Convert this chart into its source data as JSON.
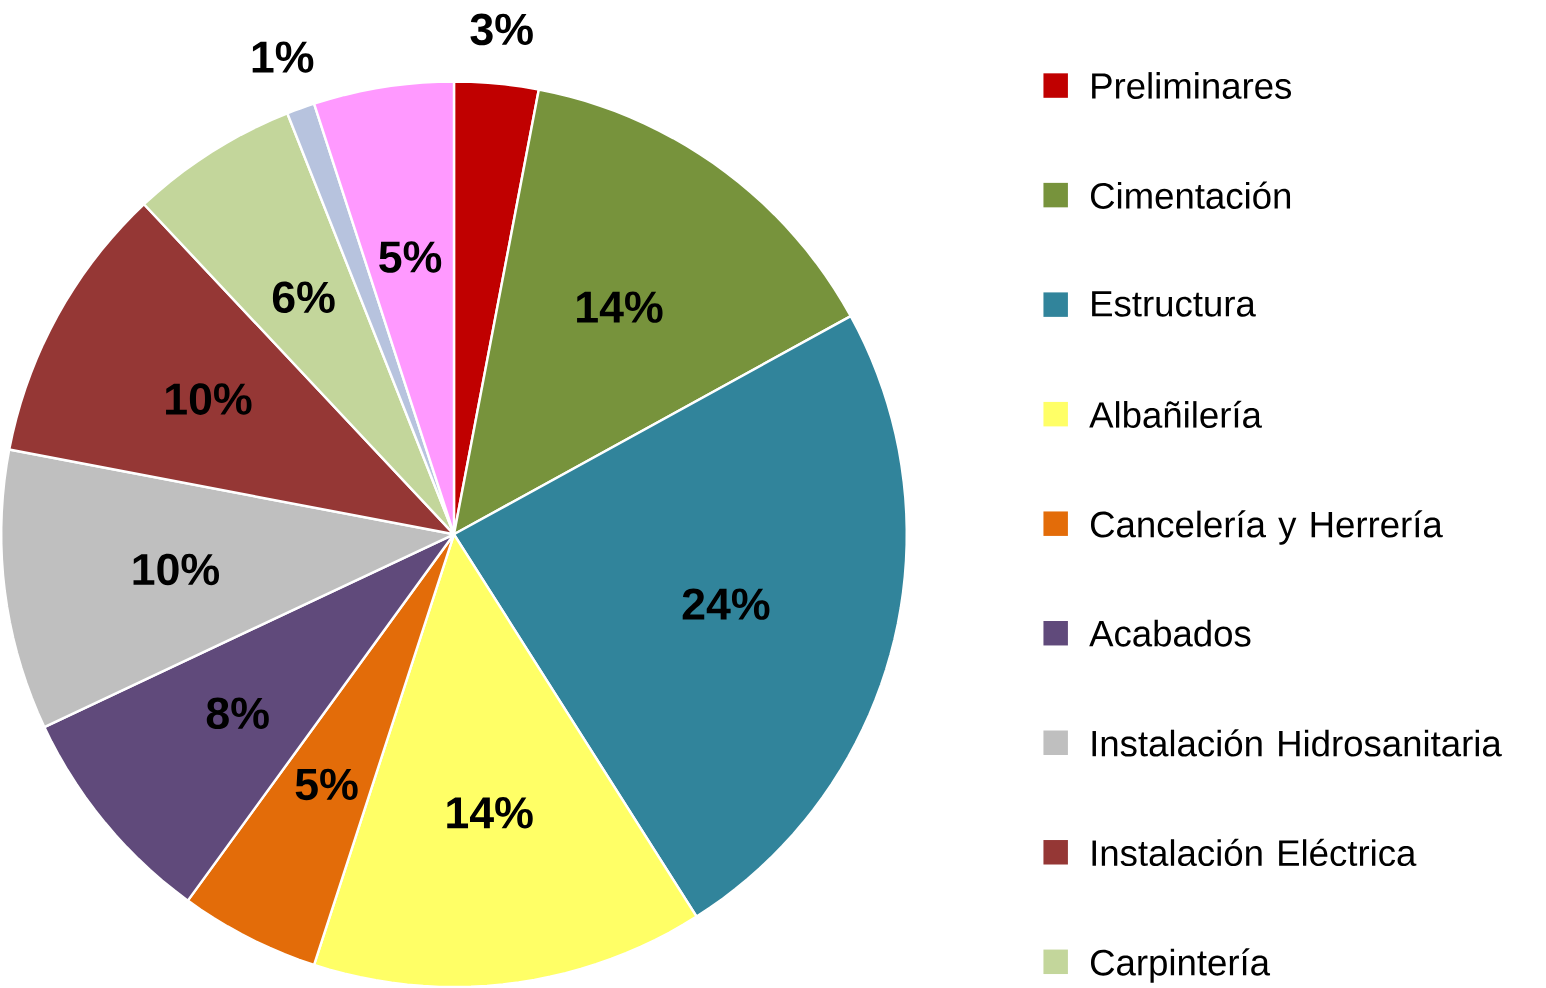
{
  "chart_data": {
    "type": "pie",
    "categories": [
      "Preliminares",
      "Cimentación",
      "Estructura",
      "Albañilería",
      "Cancelería y Herrería",
      "Acabados",
      "Instalación Hidrosanitaria",
      "Instalación Eléctrica",
      "Carpintería",
      null,
      null
    ],
    "values": [
      3,
      14,
      24,
      14,
      5,
      8,
      10,
      10,
      6,
      1,
      5
    ],
    "value_labels": [
      "3%",
      "14%",
      "24%",
      "14%",
      "5%",
      "8%",
      "10%",
      "10%",
      "6%",
      "1%",
      "5%"
    ],
    "colors": [
      "#c00000",
      "#77933c",
      "#31849b",
      "#ffff66",
      "#e36c09",
      "#604a7b",
      "#bfbfbf",
      "#953735",
      "#c3d69b",
      "#b7c3de",
      "#ff99ff"
    ],
    "legend": "right"
  }
}
